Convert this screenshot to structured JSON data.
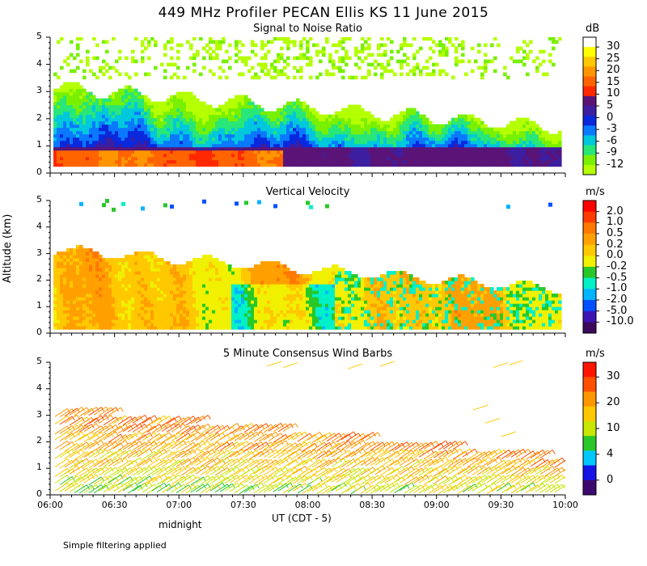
{
  "figure": {
    "title": "449 MHz Profiler PECAN Ellis KS 11 June 2015",
    "ylabel": "Altitude (km)",
    "xlabel": "UT  (CDT - 5)",
    "midnight_label": "midnight",
    "footnote": "Simple filtering applied",
    "x_ticks": [
      "06:00",
      "06:30",
      "07:00",
      "07:30",
      "08:00",
      "08:30",
      "09:00",
      "09:30",
      "10:00"
    ]
  },
  "chart_data": [
    {
      "type": "heatmap",
      "title": "Signal to Noise Ratio",
      "colorbar_unit": "dB",
      "colorbar_labels": [
        "30",
        "25",
        "20",
        "15",
        "10",
        "5",
        "0",
        "-3",
        "-6",
        "-9",
        "-12"
      ],
      "colorbar_colors": [
        "#ffffff",
        "#ffff00",
        "#ffc800",
        "#ff9600",
        "#ff6400",
        "#ff2800",
        "#5a1478",
        "#3c1ea0",
        "#0a28dc",
        "#0a78ff",
        "#00c8dc",
        "#28e678",
        "#78f000",
        "#b4ff00"
      ],
      "x_range": [
        "06:00",
        "10:00"
      ],
      "y_range_km": [
        0,
        5
      ],
      "y_ticks": [
        "0",
        "1",
        "2",
        "3",
        "4",
        "5"
      ]
    },
    {
      "type": "heatmap",
      "title": "Vertical Velocity",
      "colorbar_unit": "m/s",
      "colorbar_labels": [
        "2.0",
        "1.0",
        "0.5",
        "0.2",
        "0.0",
        "-0.2",
        "-0.5",
        "-1.0",
        "-2.0",
        "-5.0",
        "-10.0"
      ],
      "colorbar_colors": [
        "#ff0000",
        "#ff3c00",
        "#ff7800",
        "#ffa000",
        "#ffc800",
        "#f0f000",
        "#28c828",
        "#00f0c8",
        "#00b4ff",
        "#0050ff",
        "#3c14b4",
        "#3c0a5a"
      ],
      "x_range": [
        "06:00",
        "10:00"
      ],
      "y_range_km": [
        0,
        5
      ],
      "y_ticks": [
        "0",
        "1",
        "2",
        "3",
        "4",
        "5"
      ]
    },
    {
      "type": "scatter",
      "title": "5 Minute Consensus Wind Barbs",
      "colorbar_unit": "m/s",
      "colorbar_labels": [
        "30",
        "20",
        "10",
        "4",
        "0"
      ],
      "colorbar_colors": [
        "#ff1400",
        "#ff5000",
        "#ff9600",
        "#ffc800",
        "#c8e600",
        "#28c828",
        "#00c8ff",
        "#1414e6",
        "#3c0a6e"
      ],
      "x_range": [
        "06:00",
        "10:00"
      ],
      "y_range_km": [
        0,
        5
      ],
      "y_ticks": [
        "0",
        "1",
        "2",
        "3",
        "4",
        "5"
      ]
    }
  ]
}
